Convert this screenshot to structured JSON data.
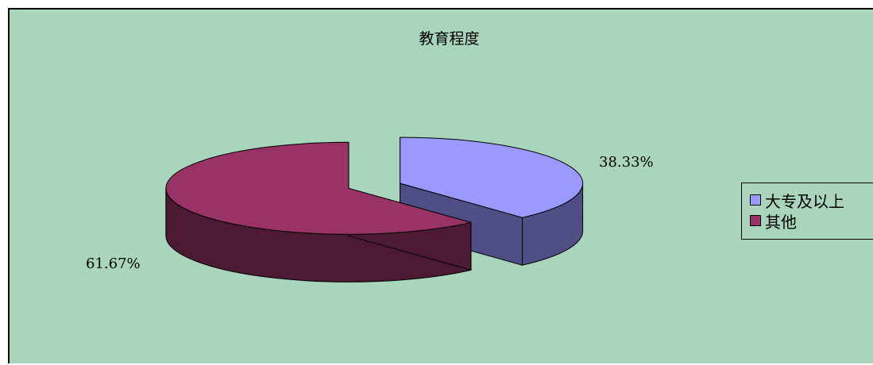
{
  "chart_data": {
    "type": "pie",
    "title": "教育程度",
    "slices": [
      {
        "name": "大专及以上",
        "value": 38.33,
        "label": "38.33%",
        "color": "#9999ff",
        "side_color": "#4f4f85"
      },
      {
        "name": "其他",
        "value": 61.67,
        "label": "61.67%",
        "color": "#993366",
        "side_color": "#4d1a33"
      }
    ],
    "legend_position": "right"
  },
  "legend": {
    "items": [
      {
        "label": "大专及以上",
        "color": "#9999ff"
      },
      {
        "label": "其他",
        "color": "#993366"
      }
    ]
  }
}
